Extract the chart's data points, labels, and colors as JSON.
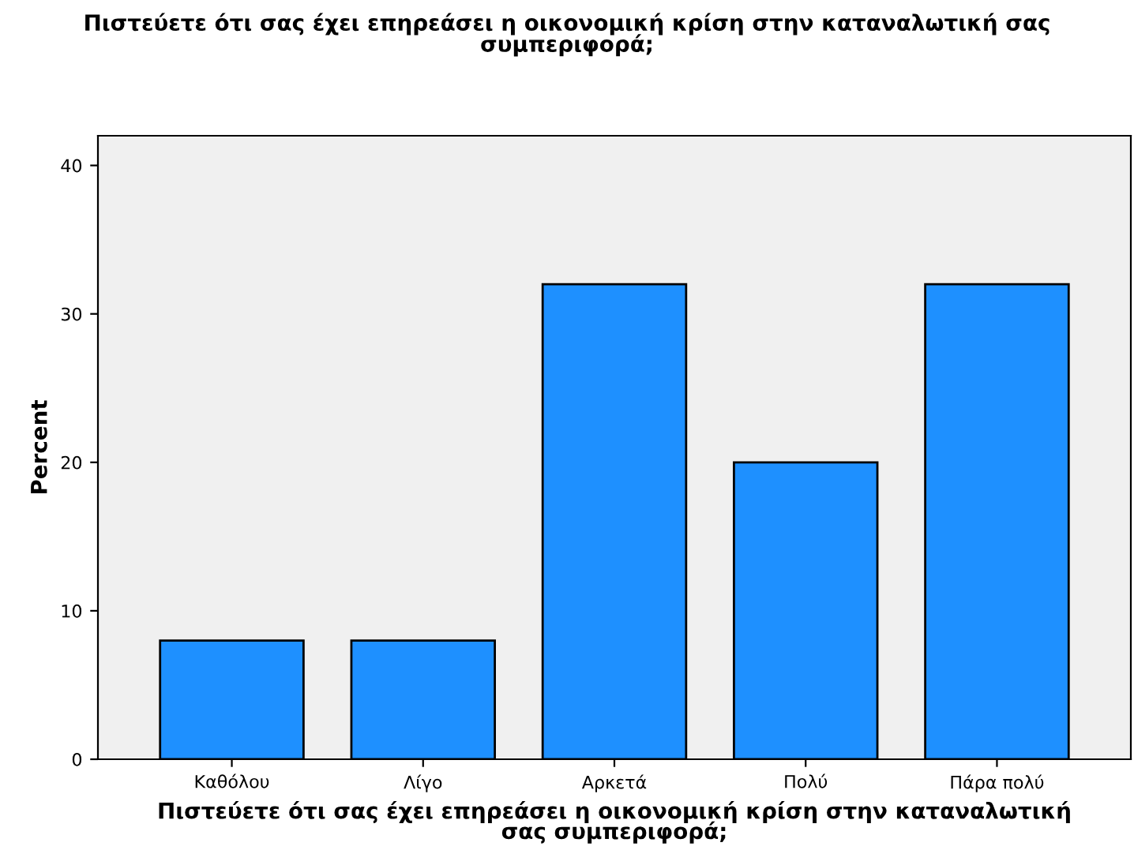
{
  "chart_data": {
    "type": "bar",
    "title": "Πιστεύετε ότι σας έχει επηρεάσει η οικονομική κρίση στην καταναλωτική σας\nσυμπεριφορά;",
    "xlabel": "Πιστεύετε ότι σας έχει επηρεάσει η οικονομική κρίση στην καταναλωτική\nσας συμπεριφορά;",
    "ylabel": "Percent",
    "categories": [
      "Καθόλου",
      "Λίγο",
      "Αρκετά",
      "Πολύ",
      "Πάρα πολύ"
    ],
    "values": [
      8,
      8,
      32,
      20,
      32
    ],
    "color": "#1e90ff",
    "ylim": [
      0,
      42
    ],
    "yticks": [
      0,
      10,
      20,
      30,
      40
    ],
    "grid": false,
    "legend": false
  }
}
